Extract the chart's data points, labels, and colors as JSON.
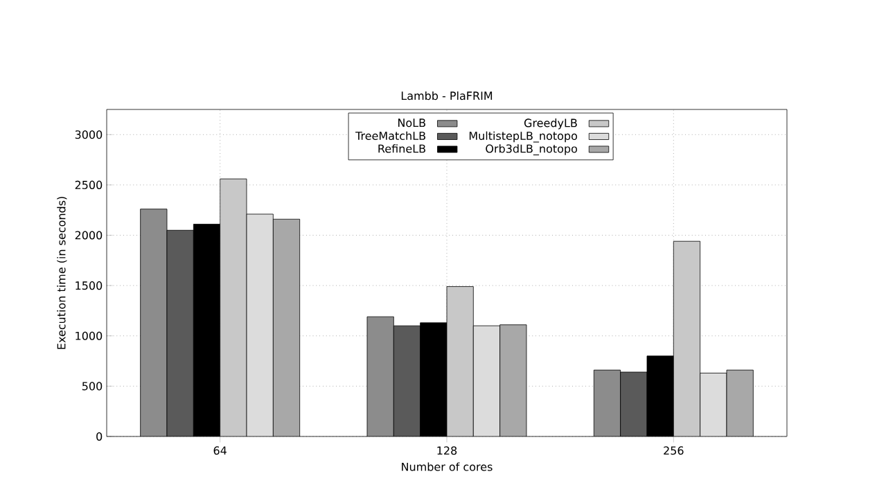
{
  "chart_data": {
    "type": "bar",
    "title": "Lambb - PlaFRIM",
    "xlabel": "Number of cores",
    "ylabel": "Execution time (in seconds)",
    "categories": [
      "64",
      "128",
      "256"
    ],
    "series": [
      {
        "name": "NoLB",
        "color": "#8c8c8c",
        "values": [
          2260,
          1190,
          660
        ]
      },
      {
        "name": "TreeMatchLB",
        "color": "#5a5a5a",
        "values": [
          2050,
          1100,
          640
        ]
      },
      {
        "name": "RefineLB",
        "color": "#000000",
        "values": [
          2110,
          1130,
          800
        ]
      },
      {
        "name": "GreedyLB",
        "color": "#c8c8c8",
        "values": [
          2560,
          1490,
          1940
        ]
      },
      {
        "name": "MultistepLB_notopo",
        "color": "#dcdcdc",
        "values": [
          2210,
          1100,
          630
        ]
      },
      {
        "name": "Orb3dLB_notopo",
        "color": "#a8a8a8",
        "values": [
          2160,
          1110,
          660
        ]
      }
    ],
    "ylim": [
      0,
      3250
    ],
    "yticks": [
      0,
      500,
      1000,
      1500,
      2000,
      2500,
      3000
    ],
    "grid": true,
    "legend": "top"
  }
}
